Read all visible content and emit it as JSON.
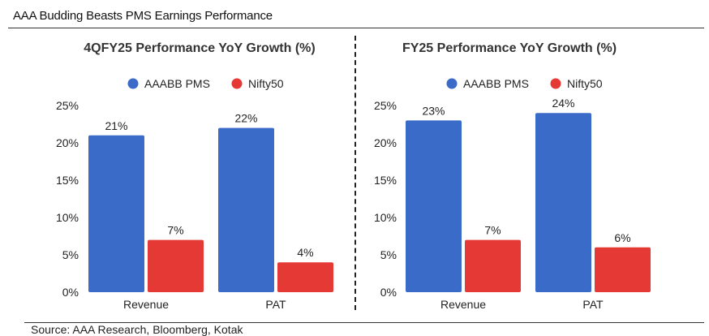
{
  "header": {
    "title": "AAA Budding Beasts PMS Earnings Performance"
  },
  "footer": {
    "source": "Source: AAA Research, Bloomberg, Kotak"
  },
  "colors": {
    "aaabb": "#3a6bc8",
    "nifty": "#e53935"
  },
  "chart_data": [
    {
      "type": "bar",
      "title": "4QFY25 Performance YoY Growth (%)",
      "categories": [
        "Revenue",
        "PAT"
      ],
      "series": [
        {
          "name": "AAABB PMS",
          "values": [
            21,
            22
          ],
          "labels": [
            "21%",
            "22%"
          ]
        },
        {
          "name": "Nifty50",
          "values": [
            7,
            4
          ],
          "labels": [
            "7%",
            "4%"
          ]
        }
      ],
      "ylim": [
        0,
        25
      ],
      "yticks": [
        0,
        5,
        10,
        15,
        20,
        25
      ],
      "ytick_labels": [
        "0%",
        "5%",
        "10%",
        "15%",
        "20%",
        "25%"
      ],
      "grid": false,
      "legend": "top"
    },
    {
      "type": "bar",
      "title": "FY25 Performance YoY Growth (%)",
      "categories": [
        "Revenue",
        "PAT"
      ],
      "series": [
        {
          "name": "AAABB PMS",
          "values": [
            23,
            24
          ],
          "labels": [
            "23%",
            "24%"
          ]
        },
        {
          "name": "Nifty50",
          "values": [
            7,
            6
          ],
          "labels": [
            "7%",
            "6%"
          ]
        }
      ],
      "ylim": [
        0,
        25
      ],
      "yticks": [
        0,
        5,
        10,
        15,
        20,
        25
      ],
      "ytick_labels": [
        "0%",
        "5%",
        "10%",
        "15%",
        "20%",
        "25%"
      ],
      "grid": false,
      "legend": "top"
    }
  ]
}
